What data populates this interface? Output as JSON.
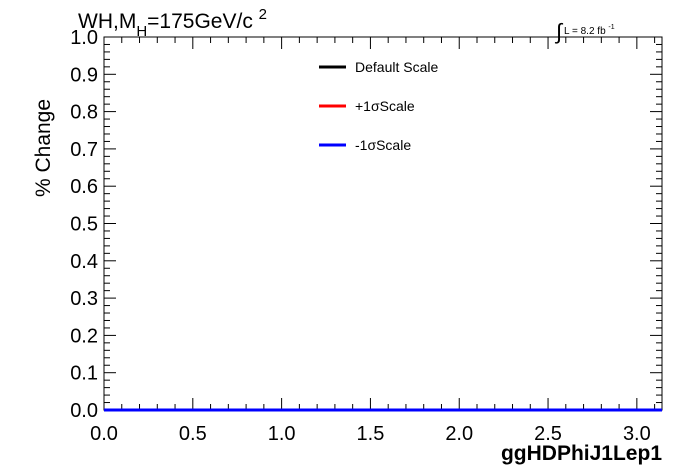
{
  "title": {
    "prefix": "WH,M",
    "subscript": "H",
    "mid": "=175GeV/c",
    "superscript": "2"
  },
  "luminosity": {
    "symbol": "∫",
    "text": "L = 8.2 fb",
    "superscript": "-1"
  },
  "chart_data": {
    "type": "line",
    "xlabel": "ggHDPhiJ1Lep1",
    "ylabel": "% Change",
    "xlim": [
      0,
      3.14159
    ],
    "ylim": [
      0,
      1.0
    ],
    "xticks": [
      "0.0",
      "0.5",
      "1.0",
      "1.5",
      "2.0",
      "2.5",
      "3.0"
    ],
    "xtick_values": [
      0.0,
      0.5,
      1.0,
      1.5,
      2.0,
      2.5,
      3.0
    ],
    "yticks": [
      "0.0",
      "0.1",
      "0.2",
      "0.3",
      "0.4",
      "0.5",
      "0.6",
      "0.7",
      "0.8",
      "0.9",
      "1.0"
    ],
    "ytick_values": [
      0.0,
      0.1,
      0.2,
      0.3,
      0.4,
      0.5,
      0.6,
      0.7,
      0.8,
      0.9,
      1.0
    ],
    "grid": false,
    "legend_position": "top-center",
    "series": [
      {
        "name": "Default Scale",
        "color": "#000000",
        "x": [
          0,
          3.14159
        ],
        "y": [
          0,
          0
        ]
      },
      {
        "name": "+1σScale",
        "color": "#ff0000",
        "x": [
          0,
          3.14159
        ],
        "y": [
          0,
          0
        ]
      },
      {
        "name": "-1σScale",
        "color": "#0000ff",
        "x": [
          0,
          3.14159
        ],
        "y": [
          0,
          0
        ]
      }
    ]
  }
}
